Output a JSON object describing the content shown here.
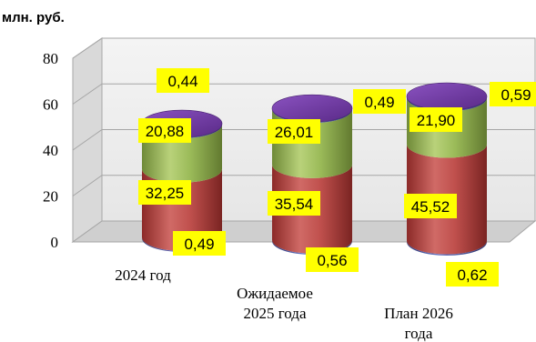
{
  "chart_data": {
    "type": "bar",
    "stacked": true,
    "style": "3d-cylinder",
    "unit_label": "млн. руб.",
    "title": "",
    "xlabel": "",
    "ylabel": "",
    "ylim": [
      0,
      80
    ],
    "yticks": [
      "0",
      "20",
      "40",
      "60",
      "80"
    ],
    "grid": true,
    "legend": "none",
    "categories": [
      "2024 год",
      "Ожидаемое 2025 года",
      "План 2026 года"
    ],
    "category_lines": [
      [
        "2024 год"
      ],
      [
        "Ожидаемое",
        "2025 года"
      ],
      [
        "План 2026",
        "года"
      ]
    ],
    "series": [
      {
        "values": [
          0.49,
          0.56,
          0.62
        ],
        "labels": [
          "0,49",
          "0,56",
          "0,62"
        ],
        "color": "#4b5aa8"
      },
      {
        "values": [
          32.25,
          35.54,
          45.52
        ],
        "labels": [
          "32,25",
          "35,54",
          "45,52"
        ],
        "color": "#c0504d"
      },
      {
        "values": [
          20.88,
          26.01,
          21.9
        ],
        "labels": [
          "20,88",
          "26,01",
          "21,90"
        ],
        "color": "#9bbb59"
      },
      {
        "values": [
          0.44,
          0.49,
          0.59
        ],
        "labels": [
          "0,44",
          "0,49",
          "0,59"
        ],
        "color": "#7030a0"
      }
    ],
    "data_label_fill": "#ffff00"
  }
}
